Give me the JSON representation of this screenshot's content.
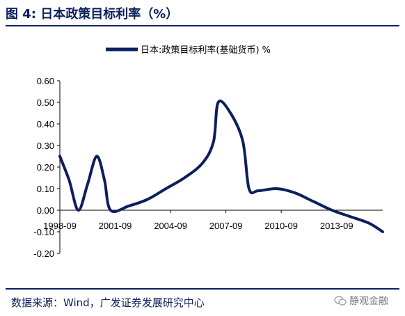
{
  "header": {
    "figure_title": "图 4:  日本政策目标利率（%）"
  },
  "footer": {
    "source": "数据来源：Wind，广发证券发展研究中心",
    "watermark": "静观金融"
  },
  "colors": {
    "series": "#0b1f5c",
    "title": "#0b1f5c"
  },
  "chart_data": {
    "type": "line",
    "title": "日本政策目标利率（%）",
    "xlabel": "",
    "ylabel": "",
    "ylim": [
      -0.2,
      0.6
    ],
    "yticks": [
      "0.60",
      "0.50",
      "0.40",
      "0.30",
      "0.20",
      "0.10",
      "0.00",
      "-0.10",
      "-0.20"
    ],
    "xticks": [
      "1998-09",
      "2001-09",
      "2004-09",
      "2007-09",
      "2010-09",
      "2013-09"
    ],
    "grid": false,
    "legend": "top",
    "series": [
      {
        "name": "日本:政策目标利率(基础货币)",
        "unit": "%",
        "color": "#0b1f5c",
        "points": [
          [
            "1998-09",
            0.25
          ],
          [
            "1999-03",
            0.14
          ],
          [
            "1999-09",
            0.0
          ],
          [
            "2000-03",
            0.12
          ],
          [
            "2000-09",
            0.25
          ],
          [
            "2001-02",
            0.14
          ],
          [
            "2001-06",
            0.0
          ],
          [
            "2002-06",
            0.02
          ],
          [
            "2003-06",
            0.05
          ],
          [
            "2004-06",
            0.1
          ],
          [
            "2005-06",
            0.15
          ],
          [
            "2006-06",
            0.22
          ],
          [
            "2007-01",
            0.32
          ],
          [
            "2007-04",
            0.5
          ],
          [
            "2007-12",
            0.45
          ],
          [
            "2008-08",
            0.32
          ],
          [
            "2008-12",
            0.1
          ],
          [
            "2009-06",
            0.09
          ],
          [
            "2010-06",
            0.1
          ],
          [
            "2011-06",
            0.08
          ],
          [
            "2012-06",
            0.04
          ],
          [
            "2013-06",
            0.0
          ],
          [
            "2014-06",
            -0.03
          ],
          [
            "2015-06",
            -0.06
          ],
          [
            "2016-03",
            -0.1
          ]
        ]
      }
    ]
  }
}
